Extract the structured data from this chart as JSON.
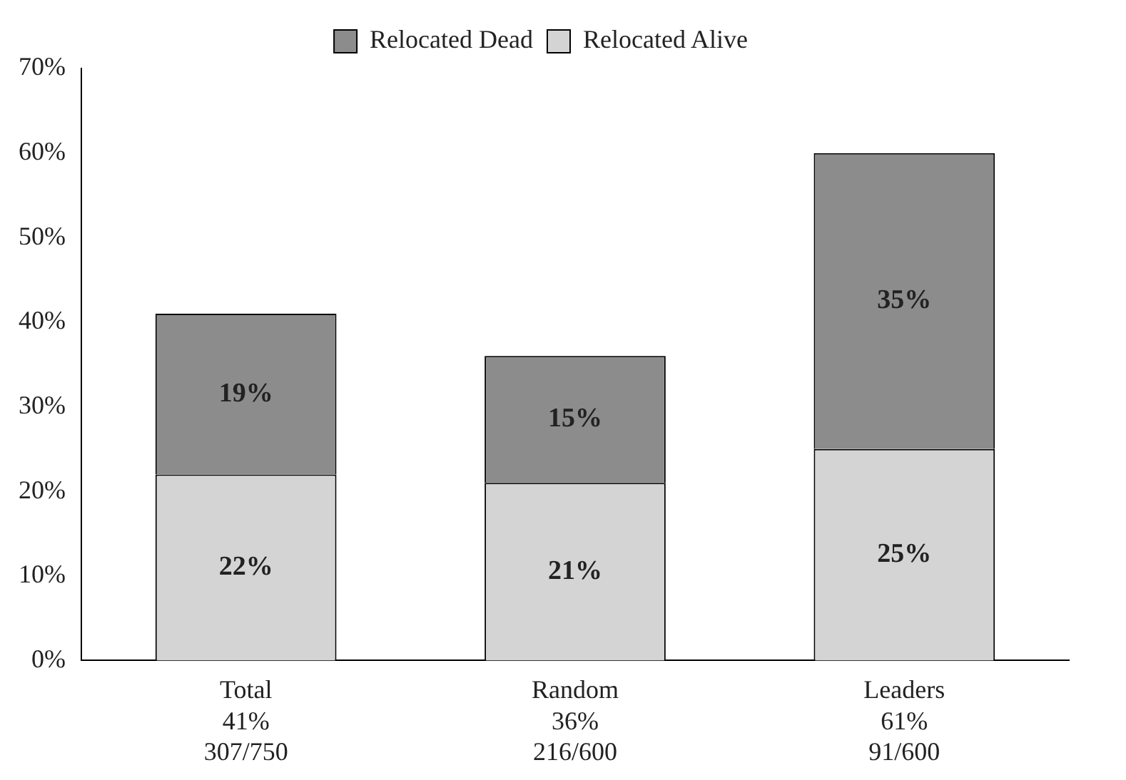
{
  "chart_data": {
    "type": "bar",
    "stacked": true,
    "categories": [
      "Total\n41%\n307/750",
      "Random\n36%\n216/600",
      "Leaders\n61%\n91/600"
    ],
    "series": [
      {
        "name": "Relocated Alive",
        "color": "#d4d4d4",
        "values": [
          22,
          21,
          25
        ],
        "value_labels": [
          "22%",
          "21%",
          "25%"
        ]
      },
      {
        "name": "Relocated Dead",
        "color": "#8c8c8c",
        "values": [
          19,
          15,
          35
        ],
        "value_labels": [
          "19%",
          "15%",
          "35%"
        ]
      }
    ],
    "ylim": [
      0,
      70
    ],
    "yticks": [
      {
        "value": 0,
        "label": "0%"
      },
      {
        "value": 10,
        "label": "10%"
      },
      {
        "value": 20,
        "label": "20%"
      },
      {
        "value": 30,
        "label": "30%"
      },
      {
        "value": 40,
        "label": "40%"
      },
      {
        "value": 50,
        "label": "50%"
      },
      {
        "value": 60,
        "label": "60%"
      },
      {
        "value": 70,
        "label": "70%"
      }
    ],
    "grid": false,
    "legend": "top"
  }
}
